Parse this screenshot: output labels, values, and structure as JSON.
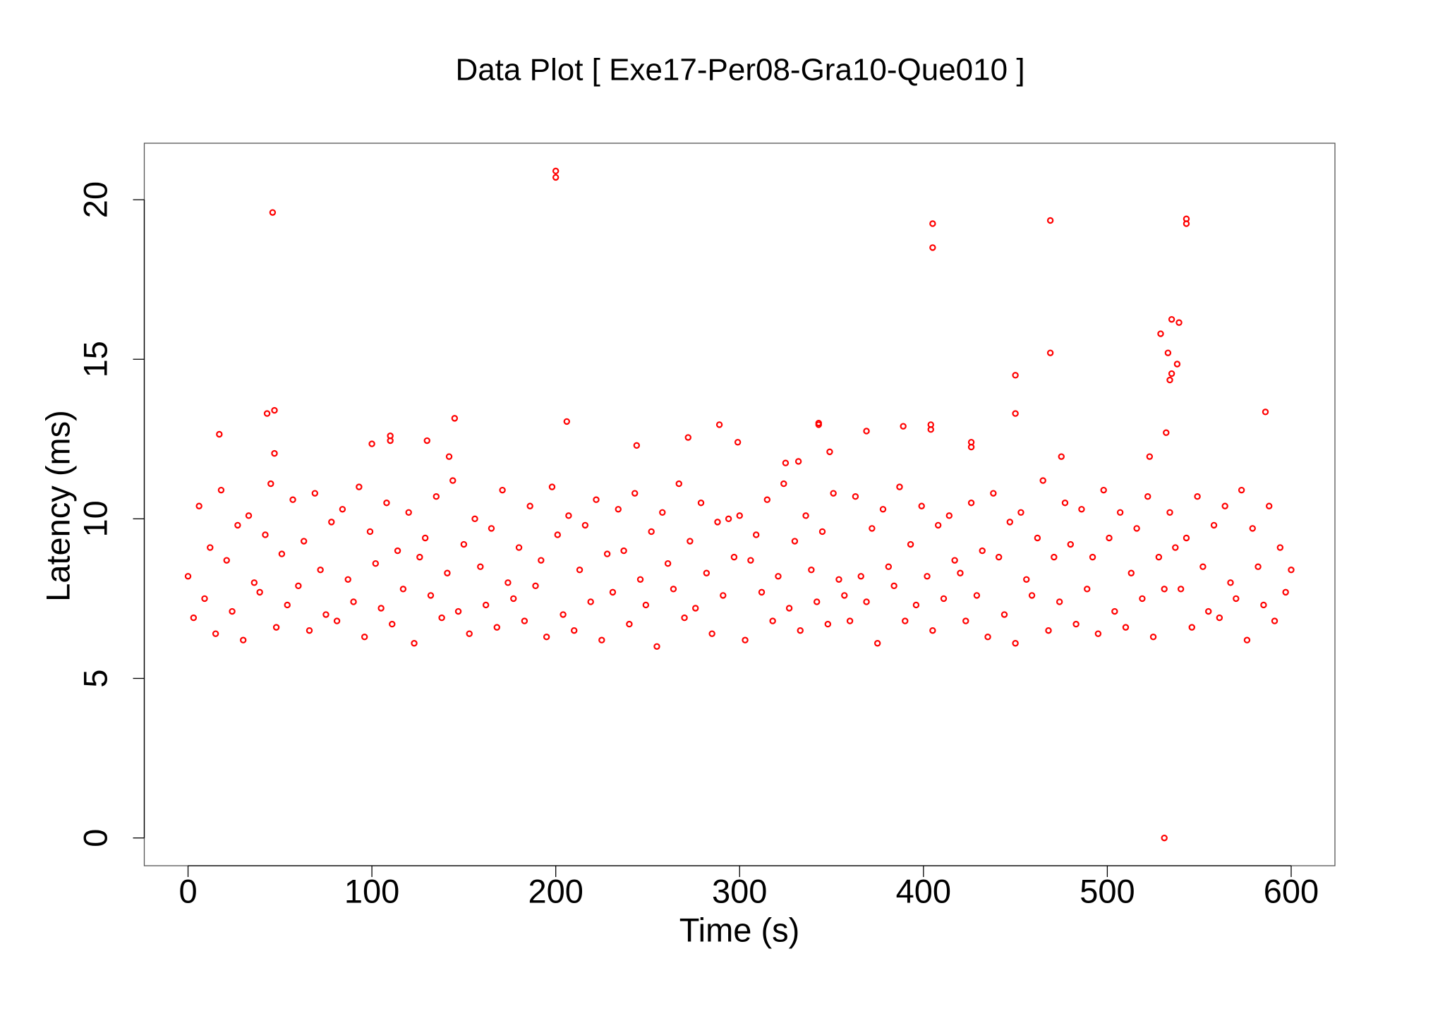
{
  "chart_data": {
    "type": "scatter",
    "title": "Data Plot [ Exe17-Per08-Gra10-Que010 ]",
    "x_label": "Time (s)",
    "y_label": "Latency (ms)",
    "color": "#ff0000",
    "xlim": [
      -23.8,
      623.8
    ],
    "ylim": [
      -0.87,
      21.77
    ],
    "xticks": [
      0,
      100,
      200,
      300,
      400,
      500,
      600
    ],
    "yticks": [
      0,
      5,
      10,
      15,
      20
    ],
    "x": [
      0,
      3,
      6,
      9,
      12,
      15,
      18,
      21,
      24,
      27,
      30,
      33,
      36,
      39,
      42,
      45,
      48,
      51,
      54,
      57,
      60,
      63,
      66,
      69,
      72,
      75,
      78,
      81,
      84,
      87,
      90,
      93,
      96,
      99,
      102,
      105,
      108,
      111,
      114,
      117,
      120,
      123,
      126,
      129,
      132,
      135,
      138,
      141,
      144,
      147,
      150,
      153,
      156,
      159,
      162,
      165,
      168,
      171,
      174,
      177,
      180,
      183,
      186,
      189,
      192,
      195,
      198,
      201,
      204,
      207,
      210,
      213,
      216,
      219,
      222,
      225,
      228,
      231,
      234,
      237,
      240,
      243,
      246,
      249,
      252,
      255,
      258,
      261,
      264,
      267,
      270,
      273,
      276,
      279,
      282,
      285,
      288,
      291,
      294,
      297,
      300,
      303,
      306,
      309,
      312,
      315,
      318,
      321,
      324,
      327,
      330,
      333,
      336,
      339,
      342,
      345,
      348,
      351,
      354,
      357,
      360,
      363,
      366,
      369,
      372,
      375,
      378,
      381,
      384,
      387,
      390,
      393,
      396,
      399,
      402,
      405,
      408,
      411,
      414,
      417,
      420,
      423,
      426,
      429,
      432,
      435,
      438,
      441,
      444,
      447,
      450,
      453,
      456,
      459,
      462,
      465,
      468,
      471,
      474,
      477,
      480,
      483,
      486,
      489,
      492,
      495,
      498,
      501,
      504,
      507,
      510,
      513,
      516,
      519,
      522,
      525,
      528,
      531,
      534,
      537,
      540,
      543,
      546,
      549,
      552,
      555,
      558,
      561,
      564,
      567,
      570,
      573,
      576,
      579,
      582,
      585,
      588,
      591,
      594,
      597,
      600,
      46,
      200,
      200,
      405,
      405,
      469,
      543,
      543,
      535,
      539,
      529,
      533,
      469,
      535,
      538,
      534,
      450,
      450,
      43,
      47,
      145,
      17,
      110,
      110,
      130,
      100,
      206,
      244,
      272,
      289,
      299,
      343,
      343,
      369,
      389,
      404,
      404,
      426,
      426,
      532,
      523,
      475,
      142,
      349,
      332,
      325,
      47,
      586,
      531
    ],
    "values": [
      8.2,
      6.9,
      10.4,
      7.5,
      9.1,
      6.4,
      10.9,
      8.7,
      7.1,
      9.8,
      6.2,
      10.1,
      8.0,
      7.7,
      9.5,
      11.1,
      6.6,
      8.9,
      7.3,
      10.6,
      7.9,
      9.3,
      6.5,
      10.8,
      8.4,
      7.0,
      9.9,
      6.8,
      10.3,
      8.1,
      7.4,
      11.0,
      6.3,
      9.6,
      8.6,
      7.2,
      10.5,
      6.7,
      9.0,
      7.8,
      10.2,
      6.1,
      8.8,
      9.4,
      7.6,
      10.7,
      6.9,
      8.3,
      11.2,
      7.1,
      9.2,
      6.4,
      10.0,
      8.5,
      7.3,
      9.7,
      6.6,
      10.9,
      8.0,
      7.5,
      9.1,
      6.8,
      10.4,
      7.9,
      8.7,
      6.3,
      11.0,
      9.5,
      7.0,
      10.1,
      6.5,
      8.4,
      9.8,
      7.4,
      10.6,
      6.2,
      8.9,
      7.7,
      10.3,
      9.0,
      6.7,
      10.8,
      8.1,
      7.3,
      9.6,
      6.0,
      10.2,
      8.6,
      7.8,
      11.1,
      6.9,
      9.3,
      7.2,
      10.5,
      8.3,
      6.4,
      9.9,
      7.6,
      10.0,
      8.8,
      10.1,
      6.2,
      8.7,
      9.5,
      7.7,
      10.6,
      6.8,
      8.2,
      11.1,
      7.2,
      9.3,
      6.5,
      10.1,
      8.4,
      7.4,
      9.6,
      6.7,
      10.8,
      8.1,
      7.6,
      6.8,
      10.7,
      8.2,
      7.4,
      9.7,
      6.1,
      10.3,
      8.5,
      7.9,
      11.0,
      6.8,
      9.2,
      7.3,
      10.4,
      8.2,
      6.5,
      9.8,
      7.5,
      10.1,
      8.7,
      8.3,
      6.8,
      10.5,
      7.6,
      9.0,
      6.3,
      10.8,
      8.8,
      7.0,
      9.9,
      6.1,
      10.2,
      8.1,
      7.6,
      9.4,
      11.2,
      6.5,
      8.8,
      7.4,
      10.5,
      9.2,
      6.7,
      10.3,
      7.8,
      8.8,
      6.4,
      10.9,
      9.4,
      7.1,
      10.2,
      6.6,
      8.3,
      9.7,
      7.5,
      10.7,
      6.3,
      8.8,
      7.8,
      10.2,
      9.1,
      7.8,
      9.4,
      6.6,
      10.7,
      8.5,
      7.1,
      9.8,
      6.9,
      10.4,
      8.0,
      7.5,
      10.9,
      6.2,
      9.7,
      8.5,
      7.3,
      10.4,
      6.8,
      9.1,
      7.7,
      8.4,
      19.6,
      20.9,
      20.7,
      19.25,
      18.5,
      19.35,
      19.4,
      19.25,
      16.25,
      16.15,
      15.8,
      15.2,
      15.2,
      14.55,
      14.85,
      14.35,
      14.5,
      13.3,
      13.3,
      13.4,
      13.15,
      12.65,
      12.6,
      12.45,
      12.45,
      12.35,
      13.05,
      12.3,
      12.55,
      12.95,
      12.4,
      13.0,
      12.95,
      12.75,
      12.9,
      12.95,
      12.8,
      12.4,
      12.25,
      12.7,
      11.95,
      11.95,
      11.95,
      12.1,
      11.8,
      11.75,
      12.05,
      13.35,
      0
    ]
  }
}
